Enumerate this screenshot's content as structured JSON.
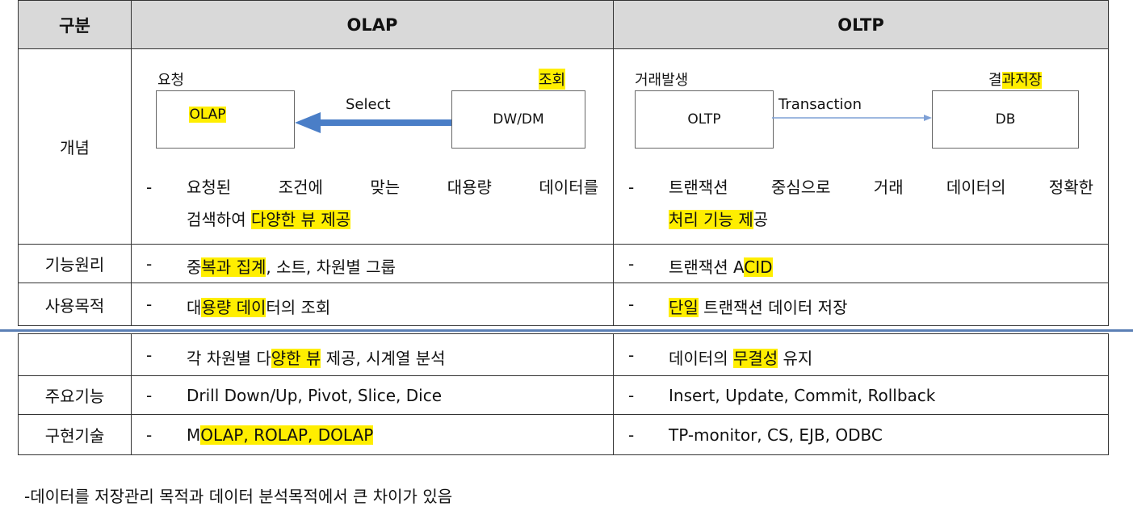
{
  "header": {
    "col0": "구분",
    "col1": "OLAP",
    "col2": "OLTP"
  },
  "concept": {
    "label": "개념",
    "olap": {
      "req_label": "요청",
      "query_label": "조회",
      "box_left": "OLAP",
      "box_right": "DW/DM",
      "arrow_label": "Select",
      "arrow_color": "#4a7ec7",
      "desc_line1": "요청된 조건에 맞는 대용량 데이터를",
      "desc_line2_pre": "검색하여 ",
      "desc_line2_hl": "다양한 뷰 제공"
    },
    "oltp": {
      "req_label": "거래발생",
      "query_label_pre": "결",
      "query_label_hl": "과저장",
      "box_left": "OLTP",
      "box_right": "DB",
      "arrow_label": "Transaction",
      "arrow_color": "#7ea0d6",
      "desc_line1": "트랜잭션 중심으로 거래 데이터의 정확한",
      "desc_line2_hl": "처리 기능 제",
      "desc_line2_post": "공"
    }
  },
  "rows": {
    "function": {
      "label": "기능원리",
      "olap_pre": "중",
      "olap_hl": "복과 집계",
      "olap_post": ", 소트, 차원별 그룹",
      "oltp_pre": "트랜잭션 A",
      "oltp_hl": "CID"
    },
    "purpose": {
      "label": "사용목적",
      "olap_pre": "대",
      "olap_hl": "용량 데이",
      "olap_post": "터의 조회",
      "oltp_hl": "단일",
      "oltp_post": " 트랜잭션 데이터 저장"
    },
    "extra": {
      "label": "",
      "olap_pre": "각 차원별 다",
      "olap_hl": "양한 뷰",
      "olap_post": " 제공, 시계열 분석",
      "oltp_pre": "데이터의 ",
      "oltp_hl": "무결성",
      "oltp_post": " 유지"
    },
    "features": {
      "label": "주요기능",
      "olap": "Drill Down/Up, Pivot, Slice, Dice",
      "oltp": "Insert, Update, Commit, Rollback"
    },
    "tech": {
      "label": "구현기술",
      "olap_pre": "M",
      "olap_hl": "OLAP, ROLAP, DOLAP",
      "oltp": "TP-monitor, CS, EJB, ODBC"
    }
  },
  "dash": "-",
  "footer": "-데이터를 저장관리 목적과 데이터 분석목적에서 큰 차이가 있음"
}
